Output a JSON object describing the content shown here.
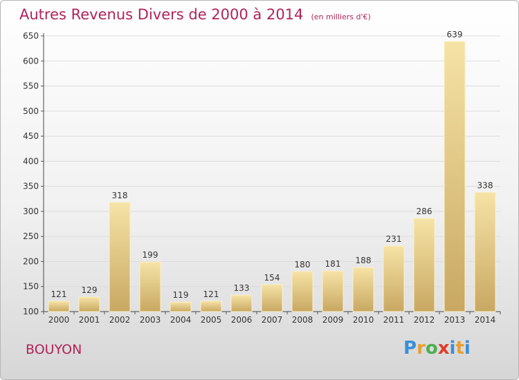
{
  "header": {
    "title": "Autres Revenus Divers de 2000 à 2014",
    "unit": "(en milliers d'€)"
  },
  "footer": {
    "place": "BOUYON",
    "logo": "Proxiti"
  },
  "colors": {
    "title": "#b0235a",
    "bar_light": "#f6e3a6",
    "bar_dark": "#c8a862",
    "grid": "#dcdcdc"
  },
  "chart_data": {
    "type": "bar",
    "title": "Autres Revenus Divers de 2000 à 2014",
    "subtitle": "(en milliers d'€)",
    "xlabel": "",
    "ylabel": "",
    "categories": [
      "2000",
      "2001",
      "2002",
      "2003",
      "2004",
      "2005",
      "2006",
      "2007",
      "2008",
      "2009",
      "2010",
      "2011",
      "2012",
      "2013",
      "2014"
    ],
    "values": [
      121,
      129,
      318,
      199,
      119,
      121,
      133,
      154,
      180,
      181,
      188,
      231,
      286,
      639,
      338
    ],
    "ylim": [
      100,
      650
    ],
    "yticks": [
      100,
      150,
      200,
      250,
      300,
      350,
      400,
      450,
      500,
      550,
      600,
      650
    ],
    "grid": true,
    "data_labels": true
  }
}
